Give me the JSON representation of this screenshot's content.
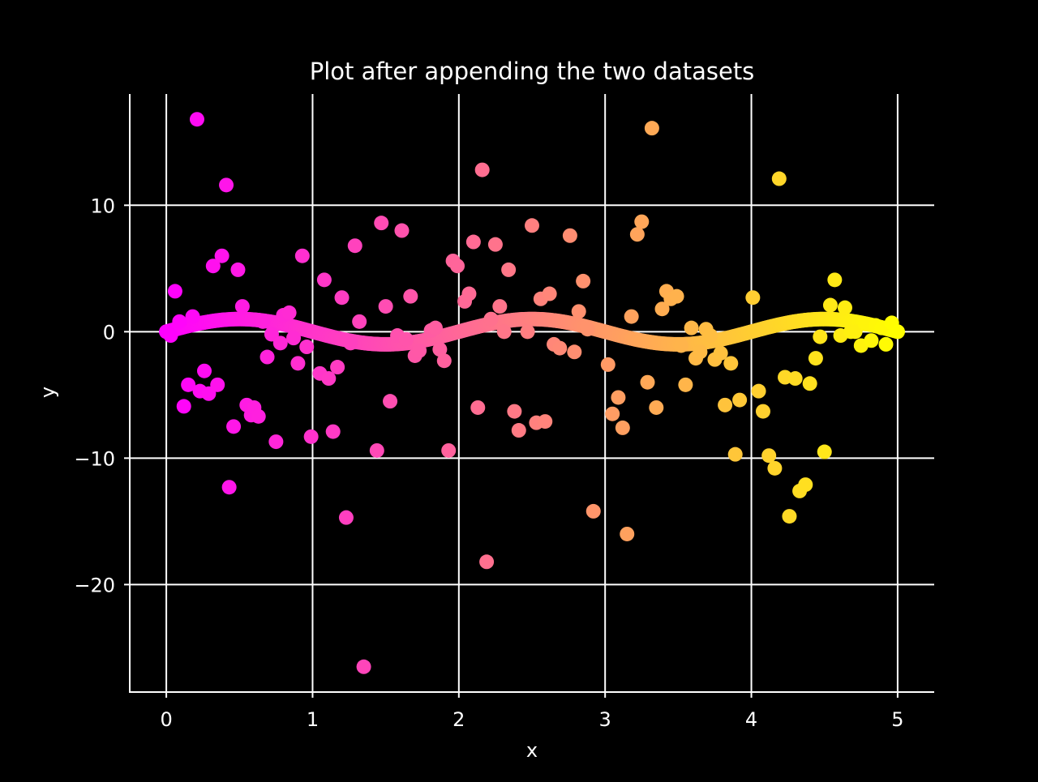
{
  "chart_data": {
    "type": "scatter",
    "title": "Plot after appending the two datasets",
    "xlabel": "x",
    "ylabel": "y",
    "xlim": [
      -0.25,
      5.25
    ],
    "ylim": [
      -28.5,
      18.8
    ],
    "xticks": [
      0,
      1,
      2,
      3,
      4,
      5
    ],
    "xtick_labels": [
      "0",
      "1",
      "2",
      "3",
      "4",
      "5"
    ],
    "yticks": [
      -20,
      -10,
      0,
      10
    ],
    "ytick_labels": [
      "−20",
      "−10",
      "0",
      "10"
    ],
    "grid": true,
    "colormap": "spring",
    "colormap_colors": [
      "#ff00ff",
      "#ffff00"
    ],
    "color_by": "x",
    "marker_color_note": "color varies with x from magenta at x=0 to yellow at x=5",
    "series": [
      {
        "curve": {
          "formula": "y = sin(pi * x)",
          "x_start": 0,
          "x_end": 5,
          "point_count": 500
        }
      },
      {
        "x": [
          0.0,
          0.03,
          0.06,
          0.09,
          0.12,
          0.15,
          0.18,
          0.21,
          0.23,
          0.26,
          0.29,
          0.32,
          0.35,
          0.38,
          0.41,
          0.43,
          0.46,
          0.49,
          0.52,
          0.55,
          0.58,
          0.6,
          0.63,
          0.66,
          0.69,
          0.72,
          0.75,
          0.78,
          0.8,
          0.84,
          0.87,
          0.9,
          0.93,
          0.96,
          0.99,
          1.05,
          1.08,
          1.11,
          1.14,
          1.17,
          1.2,
          1.23,
          1.26,
          1.29,
          1.32,
          1.35,
          1.44,
          1.47,
          1.5,
          1.53,
          1.58,
          1.61,
          1.64,
          1.67,
          1.7,
          1.73,
          1.81,
          1.84,
          1.87,
          1.9,
          1.93,
          1.96,
          1.99,
          2.04,
          2.07,
          2.1,
          2.13,
          2.16,
          2.19,
          2.22,
          2.25,
          2.28,
          2.31,
          2.34,
          2.38,
          2.41,
          2.47,
          2.5,
          2.53,
          2.56,
          2.59,
          2.62,
          2.65,
          2.69,
          2.76,
          2.79,
          2.82,
          2.85,
          2.88,
          2.92,
          3.02,
          3.05,
          3.09,
          3.12,
          3.15,
          3.18,
          3.22,
          3.25,
          3.29,
          3.32,
          3.35,
          3.39,
          3.42,
          3.45,
          3.49,
          3.52,
          3.55,
          3.59,
          3.62,
          3.65,
          3.69,
          3.72,
          3.75,
          3.79,
          3.82,
          3.86,
          3.89,
          3.92,
          4.01,
          4.05,
          4.08,
          4.12,
          4.16,
          4.19,
          4.23,
          4.26,
          4.3,
          4.33,
          4.37,
          4.4,
          4.44,
          4.47,
          4.5,
          4.54,
          4.57,
          4.61,
          4.64,
          4.68,
          4.71,
          4.75,
          4.78,
          4.82,
          4.85,
          4.89,
          4.92,
          4.96,
          5.0
        ],
        "y": [
          0.0,
          -0.3,
          3.2,
          0.8,
          -5.9,
          -4.2,
          1.2,
          16.8,
          -4.7,
          -3.1,
          -4.9,
          5.2,
          -4.2,
          6.0,
          11.6,
          -12.3,
          -7.5,
          4.9,
          2.0,
          -5.8,
          -6.6,
          -6.0,
          -6.7,
          0.8,
          -2.0,
          -0.2,
          -8.7,
          -0.9,
          1.3,
          1.5,
          -0.5,
          -2.5,
          6.0,
          -1.2,
          -8.3,
          -3.3,
          4.1,
          -3.7,
          -7.9,
          -2.8,
          2.7,
          -14.7,
          -0.9,
          6.8,
          0.8,
          -26.5,
          -9.4,
          8.6,
          2.0,
          -5.5,
          -0.3,
          8.0,
          -0.6,
          2.8,
          -1.9,
          -1.5,
          0.1,
          0.3,
          -1.4,
          -2.3,
          -9.4,
          5.6,
          5.2,
          2.4,
          3.0,
          7.1,
          -6.0,
          12.8,
          -18.2,
          1.0,
          6.9,
          2.0,
          0.0,
          4.9,
          -6.3,
          -7.8,
          0.0,
          8.4,
          -7.2,
          2.6,
          -7.1,
          3.0,
          -1.0,
          -1.3,
          7.6,
          -1.6,
          1.6,
          4.0,
          0.2,
          -14.2,
          -2.6,
          -6.5,
          -5.2,
          -7.6,
          -16.0,
          1.2,
          7.7,
          8.7,
          -4.0,
          16.1,
          -6.0,
          1.8,
          3.2,
          2.6,
          2.8,
          -1.1,
          -4.2,
          0.3,
          -2.1,
          -1.6,
          0.2,
          -0.3,
          -2.2,
          -1.7,
          -5.8,
          -2.5,
          -9.7,
          -5.4,
          2.7,
          -4.7,
          -6.3,
          -9.8,
          -10.8,
          12.1,
          -3.6,
          -14.6,
          -3.7,
          -12.6,
          -12.1,
          -4.1,
          -2.1,
          -0.4,
          -9.5,
          2.1,
          4.1,
          -0.3,
          1.9,
          0.0,
          0.0,
          -1.1,
          0.6,
          -0.7,
          0.5,
          0.3,
          -1.0,
          0.7,
          0.0
        ]
      }
    ]
  }
}
